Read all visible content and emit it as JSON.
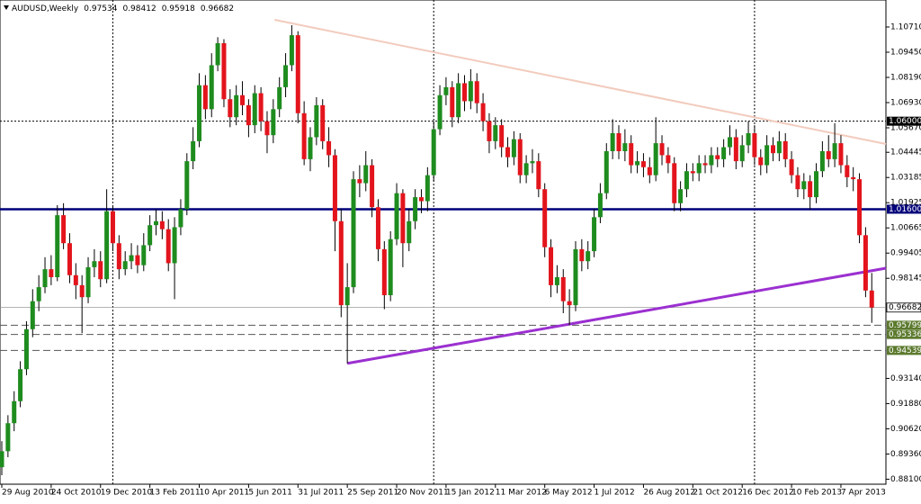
{
  "chart_data": {
    "type": "candlestick",
    "title": "AUDUSD,Weekly",
    "categories": [
      "29 Aug 2010",
      null,
      null,
      null,
      null,
      null,
      null,
      null,
      "24 Oct 2010",
      null,
      null,
      null,
      null,
      null,
      null,
      null,
      "19 Dec 2010",
      null,
      null,
      null,
      null,
      null,
      null,
      null,
      "13 Feb 2011",
      null,
      null,
      null,
      null,
      null,
      null,
      null,
      "10 Apr 2011",
      null,
      null,
      null,
      null,
      null,
      null,
      null,
      "5 Jun 2011",
      null,
      null,
      null,
      null,
      null,
      null,
      null,
      "31 Jul 2011",
      null,
      null,
      null,
      null,
      null,
      null,
      null,
      "25 Sep 2011",
      null,
      null,
      null,
      null,
      null,
      null,
      null,
      "20 Nov 2011",
      null,
      null,
      null,
      null,
      null,
      null,
      null,
      "15 Jan 2012",
      null,
      null,
      null,
      null,
      null,
      null,
      null,
      "11 Mar 2012",
      null,
      null,
      null,
      null,
      null,
      null,
      null,
      "6 May 2012",
      null,
      null,
      null,
      null,
      null,
      null,
      null,
      "1 Jul 2012",
      null,
      null,
      null,
      null,
      null,
      null,
      null,
      "26 Aug 2012",
      null,
      null,
      null,
      null,
      null,
      null,
      null,
      "21 Oct 2012",
      null,
      null,
      null,
      null,
      null,
      null,
      null,
      "16 Dec 2012",
      null,
      null,
      null,
      null,
      null,
      null,
      null,
      "10 Feb 2013",
      null,
      null,
      null,
      null,
      null,
      null,
      null,
      "7 Apr 2013",
      null,
      null,
      null,
      null,
      null
    ],
    "open": [
      0.887,
      0.895,
      0.909,
      0.92,
      0.936,
      0.956,
      0.97,
      0.977,
      0.986,
      0.982,
      1.013,
      0.999,
      0.983,
      0.978,
      0.972,
      0.987,
      0.99,
      0.981,
      1.015,
      0.999,
      0.986,
      0.99,
      0.993,
      0.988,
      0.998,
      1.008,
      1.01,
      1.006,
      0.989,
      1.007,
      1.016,
      1.04,
      1.05,
      1.078,
      1.066,
      1.088,
      1.099,
      1.071,
      1.062,
      1.073,
      1.068,
      1.058,
      1.074,
      1.06,
      1.053,
      1.066,
      1.077,
      1.088,
      1.103,
      1.064,
      1.041,
      1.052,
      1.068,
      1.05,
      1.043,
      1.01,
      0.968,
      0.977,
      1.031,
      1.029,
      1.038,
      1.017,
      0.996,
      0.973,
      1.001,
      1.024,
      0.999,
      1.01,
      1.022,
      1.02,
      1.033,
      1.056,
      1.073,
      1.077,
      1.062,
      1.079,
      1.07,
      1.08,
      1.069,
      1.06,
      1.05,
      1.058,
      1.047,
      1.042,
      1.051,
      1.033,
      1.039,
      1.04,
      1.026,
      0.997,
      0.978,
      0.982,
      0.97,
      0.968,
      0.996,
      0.99,
      0.995,
      1.012,
      1.024,
      1.045,
      1.054,
      1.045,
      1.049,
      1.038,
      1.04,
      1.037,
      1.033,
      1.049,
      1.043,
      1.039,
      1.019,
      1.026,
      1.035,
      1.034,
      1.039,
      1.038,
      1.043,
      1.041,
      1.047,
      1.052,
      1.04,
      1.048,
      1.054,
      1.042,
      1.038,
      1.048,
      1.044,
      1.05,
      1.041,
      1.033,
      1.026,
      1.03,
      1.022,
      1.035,
      1.045,
      1.041,
      1.049,
      1.038,
      1.032,
      1.031,
      1.003,
      0.97534
    ],
    "high": [
      0.9,
      0.913,
      0.925,
      0.94,
      0.96,
      0.976,
      0.983,
      0.992,
      0.993,
      1.018,
      1.019,
      1.004,
      0.989,
      0.983,
      0.992,
      0.996,
      0.995,
      1.026,
      1.018,
      1.003,
      0.995,
      0.999,
      0.998,
      1.004,
      1.013,
      1.016,
      1.015,
      1.011,
      1.012,
      1.021,
      1.044,
      1.057,
      1.084,
      1.083,
      1.094,
      1.102,
      1.101,
      1.076,
      1.078,
      1.08,
      1.071,
      1.078,
      1.077,
      1.065,
      1.071,
      1.082,
      1.094,
      1.108,
      1.105,
      1.07,
      1.057,
      1.072,
      1.071,
      1.057,
      1.046,
      1.016,
      0.989,
      1.035,
      1.038,
      1.045,
      1.041,
      1.021,
      1.0,
      1.005,
      1.029,
      1.026,
      1.016,
      1.026,
      1.026,
      1.037,
      1.06,
      1.078,
      1.082,
      1.08,
      1.084,
      1.083,
      1.086,
      1.084,
      1.074,
      1.064,
      1.062,
      1.061,
      1.052,
      1.055,
      1.054,
      1.043,
      1.046,
      1.044,
      1.029,
      1.001,
      0.988,
      0.986,
      0.976,
      1.0,
      1.001,
      1.0,
      1.016,
      1.029,
      1.049,
      1.061,
      1.058,
      1.056,
      1.053,
      1.045,
      1.044,
      1.042,
      1.062,
      1.053,
      1.047,
      1.042,
      1.03,
      1.039,
      1.039,
      1.043,
      1.043,
      1.047,
      1.047,
      1.051,
      1.058,
      1.056,
      1.053,
      1.06,
      1.058,
      1.046,
      1.053,
      1.052,
      1.055,
      1.054,
      1.045,
      1.037,
      1.034,
      1.033,
      1.039,
      1.05,
      1.053,
      1.059,
      1.053,
      1.043,
      1.037,
      1.034,
      1.007,
      0.98412
    ],
    "low": [
      0.883,
      0.892,
      0.905,
      0.917,
      0.933,
      0.952,
      0.965,
      0.974,
      0.978,
      0.98,
      0.996,
      0.979,
      0.971,
      0.954,
      0.969,
      0.982,
      0.977,
      0.979,
      0.995,
      0.981,
      0.983,
      0.986,
      0.984,
      0.985,
      0.995,
      1.003,
      1.001,
      0.985,
      0.971,
      1.003,
      1.013,
      1.036,
      1.047,
      1.061,
      1.062,
      1.085,
      1.067,
      1.057,
      1.058,
      1.063,
      1.052,
      1.054,
      1.055,
      1.044,
      1.049,
      1.062,
      1.072,
      1.085,
      1.059,
      1.038,
      1.035,
      1.048,
      1.046,
      1.037,
      0.995,
      0.962,
      0.9389,
      0.974,
      1.022,
      1.025,
      1.012,
      0.99,
      0.966,
      0.97,
      0.998,
      0.987,
      0.995,
      1.006,
      1.014,
      1.015,
      1.03,
      1.053,
      1.068,
      1.057,
      1.059,
      1.065,
      1.066,
      1.064,
      1.055,
      1.044,
      1.046,
      1.042,
      1.037,
      1.038,
      1.029,
      1.029,
      1.034,
      1.022,
      0.992,
      0.972,
      0.974,
      0.964,
      0.958,
      0.965,
      0.985,
      0.986,
      0.992,
      1.009,
      1.021,
      1.041,
      1.041,
      1.04,
      1.034,
      1.034,
      1.032,
      1.029,
      1.03,
      1.038,
      1.034,
      1.015,
      1.015,
      1.022,
      1.03,
      1.03,
      1.034,
      1.034,
      1.037,
      1.037,
      1.043,
      1.036,
      1.037,
      1.044,
      1.038,
      1.033,
      1.034,
      1.04,
      1.04,
      1.037,
      1.029,
      1.022,
      1.021,
      1.016,
      1.019,
      1.032,
      1.037,
      1.037,
      1.034,
      1.027,
      1.025,
      0.999,
      0.972,
      0.95918
    ],
    "close": [
      0.895,
      0.909,
      0.92,
      0.936,
      0.956,
      0.97,
      0.977,
      0.986,
      0.982,
      1.013,
      0.999,
      0.983,
      0.978,
      0.972,
      0.987,
      0.99,
      0.981,
      1.015,
      0.999,
      0.986,
      0.99,
      0.993,
      0.988,
      0.998,
      1.008,
      1.01,
      1.006,
      0.989,
      1.007,
      1.016,
      1.04,
      1.05,
      1.078,
      1.066,
      1.088,
      1.099,
      1.071,
      1.062,
      1.073,
      1.068,
      1.058,
      1.074,
      1.06,
      1.053,
      1.066,
      1.077,
      1.088,
      1.103,
      1.064,
      1.041,
      1.052,
      1.068,
      1.05,
      1.043,
      1.01,
      0.968,
      0.977,
      1.031,
      1.029,
      1.038,
      1.017,
      0.996,
      0.973,
      1.001,
      1.024,
      0.999,
      1.01,
      1.022,
      1.02,
      1.033,
      1.056,
      1.073,
      1.077,
      1.062,
      1.079,
      1.07,
      1.08,
      1.069,
      1.06,
      1.05,
      1.058,
      1.047,
      1.042,
      1.051,
      1.033,
      1.039,
      1.04,
      1.026,
      0.997,
      0.978,
      0.982,
      0.97,
      0.968,
      0.996,
      0.99,
      0.995,
      1.012,
      1.024,
      1.045,
      1.054,
      1.045,
      1.049,
      1.038,
      1.04,
      1.037,
      1.033,
      1.049,
      1.043,
      1.039,
      1.019,
      1.026,
      1.035,
      1.034,
      1.039,
      1.038,
      1.043,
      1.041,
      1.047,
      1.052,
      1.04,
      1.048,
      1.054,
      1.042,
      1.038,
      1.048,
      1.044,
      1.05,
      1.041,
      1.033,
      1.026,
      1.03,
      1.022,
      1.035,
      1.045,
      1.041,
      1.049,
      1.038,
      1.032,
      1.031,
      1.003,
      0.97534,
      0.96682
    ],
    "up_color": "#1e8c1e",
    "down_color": "#e3141c",
    "wick_color": "#000000",
    "ylim": [
      0.8785,
      1.1206
    ],
    "yticks": [
      {
        "value": 1.1071,
        "label": "1.10710"
      },
      {
        "value": 1.0945,
        "label": "1.09450"
      },
      {
        "value": 1.0819,
        "label": "1.08190"
      },
      {
        "value": 1.0693,
        "label": "1.06930"
      },
      {
        "value": 1.0567,
        "label": "1.05670"
      },
      {
        "value": 1.04445,
        "label": "1.04445"
      },
      {
        "value": 1.03185,
        "label": "1.03185"
      },
      {
        "value": 1.01925,
        "label": "1.01925"
      },
      {
        "value": 1.00665,
        "label": "1.00665"
      },
      {
        "value": 0.99405,
        "label": "0.99405"
      },
      {
        "value": 0.98145,
        "label": "0.98145"
      },
      {
        "value": 0.9314,
        "label": "0.93140"
      },
      {
        "value": 0.9188,
        "label": "0.91880"
      },
      {
        "value": 0.9062,
        "label": "0.90620"
      },
      {
        "value": 0.8936,
        "label": "0.89360"
      },
      {
        "value": 0.881,
        "label": "0.88100"
      }
    ],
    "levels": [
      {
        "value": 1.06,
        "label": "1.06000",
        "color": "#000000",
        "label_color": "#000000",
        "text_color": "#ffffff",
        "style": "dotted"
      },
      {
        "value": 1.016,
        "label": "1.01600",
        "color": "#00007a",
        "label_color": "#00007a",
        "text_color": "#ffffff",
        "style": "solid"
      },
      {
        "value": 0.95799,
        "label": "0.95799",
        "color": "#555555",
        "label_color": "#5c7a2e",
        "text_color": "#ffffff",
        "style": "dashed"
      },
      {
        "value": 0.95336,
        "label": "0.95336",
        "color": "#555555",
        "label_color": "#5c7a2e",
        "text_color": "#ffffff",
        "style": "dashed"
      },
      {
        "value": 0.94539,
        "label": "0.94539",
        "color": "#555555",
        "label_color": "#5c7a2e",
        "text_color": "#ffffff",
        "style": "dashed"
      }
    ],
    "trendlines": [
      {
        "x": [
          56,
          143.3
        ],
        "y": [
          0.9389,
          0.9865
        ],
        "color": "#9b30d0"
      },
      {
        "x": [
          44.2,
          143.3
        ],
        "y": [
          1.1107,
          1.0486
        ],
        "color": "#f2cbbd"
      }
    ],
    "separators": [
      18,
      70,
      122
    ],
    "current_color": "#888888"
  }
}
